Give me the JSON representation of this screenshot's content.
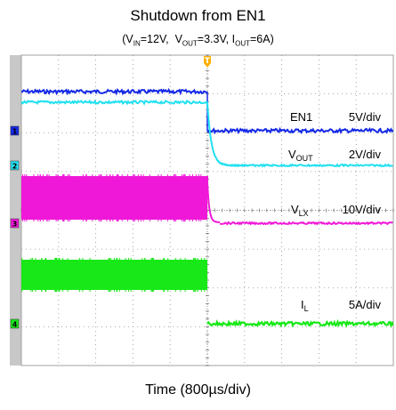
{
  "chart_data": {
    "type": "line",
    "title": "Shutdown from EN1",
    "subtitle": {
      "open": "(",
      "vin_sym": "V",
      "vin_sub": "IN",
      "vin_val": "=12V,",
      "vout_sym": "V",
      "vout_sub": "OUT",
      "vout_val": "=3.3V,",
      "iout_sym": "I",
      "iout_sub": "OUT",
      "iout_val": "=6A)"
    },
    "xlabel": "Time (800µs/div)",
    "trigger_marker": "T",
    "channels": [
      {
        "id": "1",
        "marker": "1",
        "name": "EN1",
        "sub": "",
        "scale": "5V/div",
        "color": "#1428e6"
      },
      {
        "id": "2",
        "marker": "2",
        "name": "V",
        "sub": "OUT",
        "scale": "2V/div",
        "color": "#22e0f0"
      },
      {
        "id": "3",
        "marker": "3",
        "name": "V",
        "sub": "LX",
        "scale": "10V/div",
        "color": "#f018d8"
      },
      {
        "id": "4",
        "marker": "4",
        "name": "I",
        "sub": "L",
        "scale": "5A/div",
        "color": "#18e818"
      }
    ],
    "grid": true,
    "accent_colors": {
      "trigger": "#ffb000",
      "background": "#ffffff",
      "grid": "#909090"
    }
  }
}
